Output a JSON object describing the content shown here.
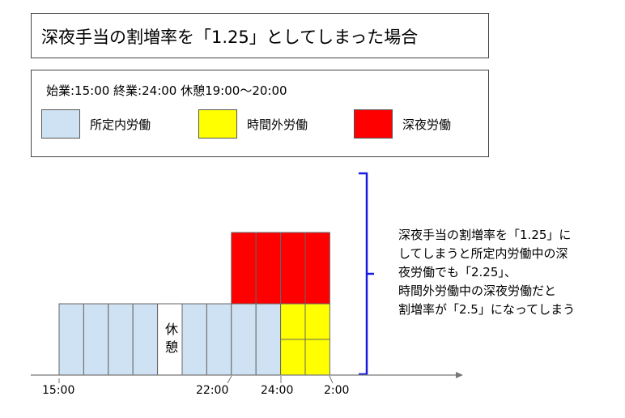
{
  "title": "深夜手当の割増率を「1.25」としてしまった場合",
  "legend": {
    "hours": "始業:15:00  終業:24:00  休憩19:00〜20:00",
    "items": [
      {
        "label": "所定内労働",
        "color": "#cfe2f3"
      },
      {
        "label": "時間外労働",
        "color": "#ffff00"
      },
      {
        "label": "深夜労働",
        "color": "#ff0000"
      }
    ]
  },
  "chart_data": {
    "type": "stacked-block",
    "rest": {
      "chars": [
        "休",
        "憩"
      ]
    },
    "ticks": [
      "15:00",
      "22:00",
      "24:00",
      "2:00"
    ],
    "columns": [
      {
        "stack": [
          "base"
        ]
      },
      {
        "stack": [
          "base"
        ]
      },
      {
        "stack": [
          "base"
        ]
      },
      {
        "stack": [
          "base"
        ]
      },
      {
        "stack": [
          "rest"
        ]
      },
      {
        "stack": [
          "base"
        ]
      },
      {
        "stack": [
          "base"
        ]
      },
      {
        "stack": [
          "base",
          "late"
        ]
      },
      {
        "stack": [
          "base",
          "late"
        ]
      },
      {
        "stack": [
          "over",
          "over",
          "late"
        ]
      },
      {
        "stack": [
          "over",
          "over",
          "late"
        ]
      }
    ],
    "bracket_color": "#1a1adf"
  },
  "note": {
    "lines": [
      "深夜手当の割増率を「1.25」に",
      "してしまうと所定内労働中の深",
      "夜労働でも「2.25」、",
      "時間外労働中の深夜労働だと",
      "割増率が「2.5」になってしまう"
    ]
  }
}
